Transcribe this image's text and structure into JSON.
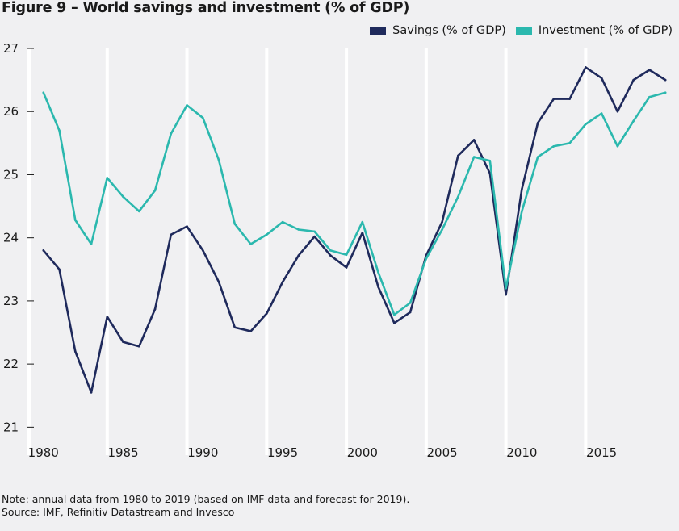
{
  "title": "Figure 9 – World savings and investment (% of GDP)",
  "notes": {
    "note": "Note: annual data from 1980 to 2019 (based on IMF data and forecast for 2019).",
    "source": "Source: IMF, Refinitiv Datastream and Invesco"
  },
  "colors": {
    "savings": "#1f2a5c",
    "investment": "#2bb8ae",
    "background": "#f0f0f2",
    "gridline": "#ffffff"
  },
  "chart_data": {
    "type": "line",
    "title": "Figure 9 – World savings and investment (% of GDP)",
    "xlabel": "",
    "ylabel": "",
    "x": [
      1980,
      1981,
      1982,
      1983,
      1984,
      1985,
      1986,
      1987,
      1988,
      1989,
      1990,
      1991,
      1992,
      1993,
      1994,
      1995,
      1996,
      1997,
      1998,
      1999,
      2000,
      2001,
      2002,
      2003,
      2004,
      2005,
      2006,
      2007,
      2008,
      2009,
      2010,
      2011,
      2012,
      2013,
      2014,
      2015,
      2016,
      2017,
      2018,
      2019
    ],
    "xlim": [
      1979.1,
      2019.6
    ],
    "ylim": [
      20.8,
      27
    ],
    "yticks": [
      21,
      22,
      23,
      24,
      25,
      26,
      27
    ],
    "xticks": [
      1980,
      1985,
      1990,
      1995,
      2000,
      2005,
      2010,
      2015
    ],
    "vertical_gridlines": [
      1984,
      1989,
      1994,
      1999,
      2004,
      2009,
      2014
    ],
    "legend_position": "top-right",
    "series": [
      {
        "name": "Savings (% of GDP)",
        "values": [
          23.8,
          23.5,
          22.2,
          21.55,
          22.75,
          22.35,
          22.28,
          22.87,
          24.05,
          24.18,
          23.8,
          23.3,
          22.58,
          22.52,
          22.8,
          23.3,
          23.72,
          24.02,
          23.72,
          23.53,
          24.08,
          23.22,
          22.65,
          22.82,
          23.72,
          24.25,
          25.3,
          25.55,
          25.02,
          23.1,
          24.77,
          25.82,
          26.2,
          26.2,
          26.7,
          26.53,
          26.0,
          26.5,
          26.66,
          26.5
        ]
      },
      {
        "name": "Investment (% of GDP)",
        "values": [
          26.3,
          25.7,
          24.28,
          23.9,
          24.95,
          24.65,
          24.42,
          24.75,
          25.65,
          26.1,
          25.9,
          25.23,
          24.22,
          23.9,
          24.05,
          24.25,
          24.13,
          24.1,
          23.8,
          23.73,
          24.25,
          23.45,
          22.78,
          22.97,
          23.67,
          24.13,
          24.65,
          25.28,
          25.22,
          23.2,
          24.42,
          25.28,
          25.45,
          25.5,
          25.8,
          25.97,
          25.45,
          25.85,
          26.23,
          26.3
        ]
      }
    ]
  }
}
